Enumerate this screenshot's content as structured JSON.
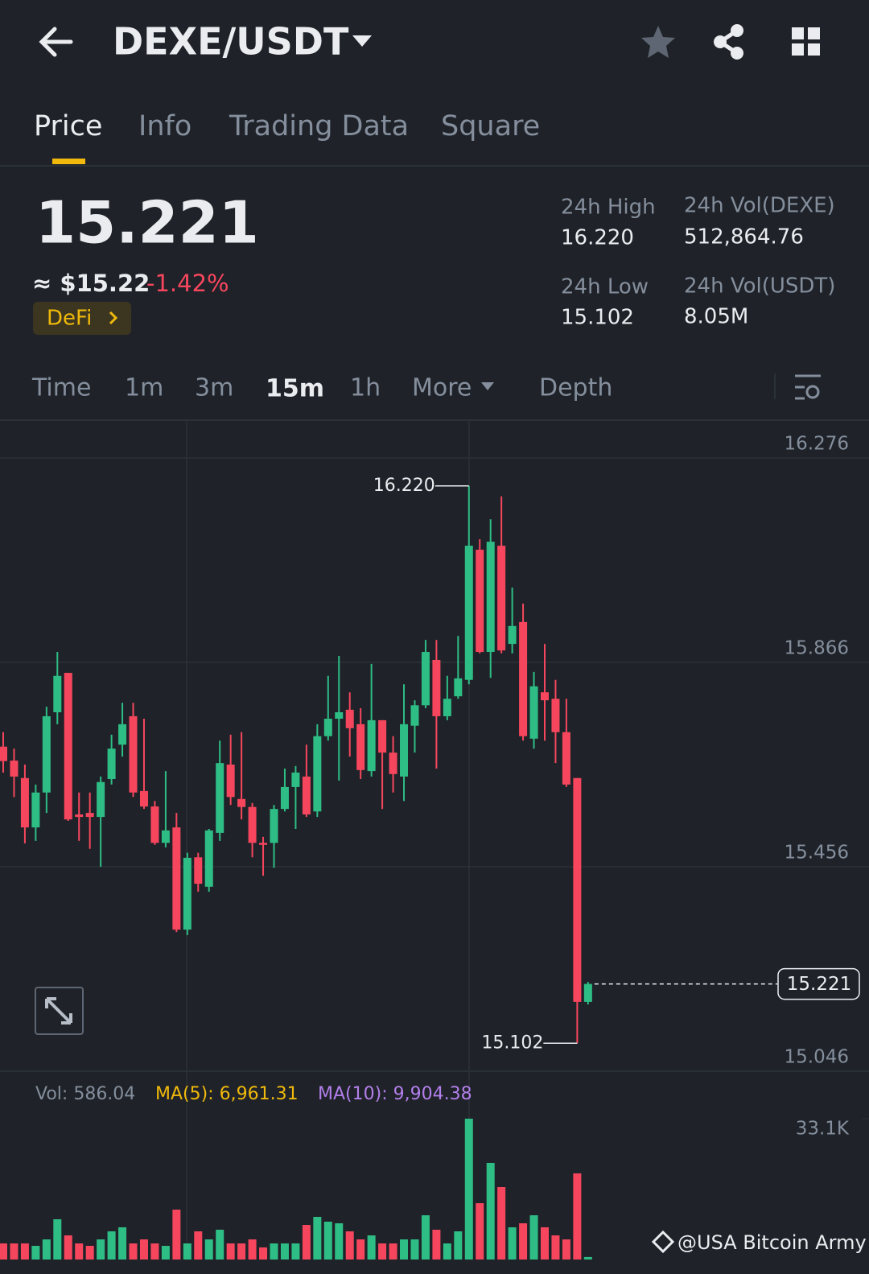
{
  "header": {
    "title": "DEXE/USDT"
  },
  "tabs": [
    "Price",
    "Info",
    "Trading Data",
    "Square"
  ],
  "ticker": {
    "price": "15.221",
    "usd": "≈ $15.22",
    "change": "-1.42%",
    "tag": "DeFi",
    "stats": [
      {
        "label": "24h High",
        "value": "16.220"
      },
      {
        "label": "24h Vol(DEXE)",
        "value": "512,864.76"
      },
      {
        "label": "24h Low",
        "value": "15.102"
      },
      {
        "label": "24h Vol(USDT)",
        "value": "8.05M"
      }
    ]
  },
  "intervals": [
    "Time",
    "1m",
    "3m",
    "15m",
    "1h",
    "More",
    "Depth"
  ],
  "chart_data": [
    {
      "type": "candlestick",
      "up_color": "#2ebd85",
      "down_color": "#f6465d",
      "ylim": [
        15.046,
        16.352
      ],
      "yticks": [
        16.276,
        15.866,
        15.456,
        15.046
      ],
      "grid": true,
      "ohlc": [
        [
          15.697,
          15.726,
          15.645,
          15.668
        ],
        [
          15.669,
          15.693,
          15.596,
          15.637
        ],
        [
          15.634,
          15.661,
          15.503,
          15.535
        ],
        [
          15.535,
          15.621,
          15.508,
          15.605
        ],
        [
          15.605,
          15.777,
          15.564,
          15.758
        ],
        [
          15.766,
          15.887,
          15.742,
          15.839
        ],
        [
          15.845,
          15.845,
          15.548,
          15.551
        ],
        [
          15.561,
          15.605,
          15.508,
          15.556
        ],
        [
          15.564,
          15.605,
          15.492,
          15.556
        ],
        [
          15.556,
          15.637,
          15.456,
          15.626
        ],
        [
          15.632,
          15.721,
          15.621,
          15.693
        ],
        [
          15.701,
          15.785,
          15.677,
          15.742
        ],
        [
          15.758,
          15.785,
          15.596,
          15.605
        ],
        [
          15.608,
          15.753,
          15.572,
          15.577
        ],
        [
          15.577,
          15.588,
          15.5,
          15.504
        ],
        [
          15.504,
          15.648,
          15.495,
          15.529
        ],
        [
          15.535,
          15.564,
          15.325,
          15.33
        ],
        [
          15.33,
          15.484,
          15.319,
          15.474
        ],
        [
          15.475,
          15.484,
          15.406,
          15.422
        ],
        [
          15.416,
          15.532,
          15.406,
          15.529
        ],
        [
          15.524,
          15.709,
          15.508,
          15.664
        ],
        [
          15.661,
          15.721,
          15.58,
          15.596
        ],
        [
          15.592,
          15.726,
          15.551,
          15.576
        ],
        [
          15.576,
          15.584,
          15.475,
          15.504
        ],
        [
          15.504,
          15.516,
          15.438,
          15.5
        ],
        [
          15.504,
          15.58,
          15.454,
          15.572
        ],
        [
          15.572,
          15.653,
          15.567,
          15.616
        ],
        [
          15.616,
          15.658,
          15.532,
          15.645
        ],
        [
          15.637,
          15.701,
          15.556,
          15.561
        ],
        [
          15.567,
          15.742,
          15.556,
          15.718
        ],
        [
          15.718,
          15.839,
          15.709,
          15.753
        ],
        [
          15.753,
          15.879,
          15.629,
          15.766
        ],
        [
          15.771,
          15.806,
          15.677,
          15.734
        ],
        [
          15.742,
          15.774,
          15.632,
          15.65
        ],
        [
          15.648,
          15.863,
          15.637,
          15.75
        ],
        [
          15.75,
          15.75,
          15.572,
          15.685
        ],
        [
          15.685,
          15.718,
          15.605,
          15.642
        ],
        [
          15.637,
          15.822,
          15.588,
          15.742
        ],
        [
          15.739,
          15.79,
          15.685,
          15.78
        ],
        [
          15.78,
          15.911,
          15.774,
          15.887
        ],
        [
          15.871,
          15.911,
          15.653,
          15.758
        ],
        [
          15.758,
          15.839,
          15.75,
          15.793
        ],
        [
          15.798,
          15.919,
          15.793,
          15.834
        ],
        [
          15.831,
          16.22,
          15.822,
          16.1
        ],
        [
          16.092,
          16.113,
          15.884,
          15.887
        ],
        [
          15.887,
          16.153,
          15.835,
          16.108
        ],
        [
          16.1,
          16.199,
          15.884,
          15.89
        ],
        [
          15.903,
          16.016,
          15.884,
          15.939
        ],
        [
          15.947,
          15.984,
          15.709,
          15.718
        ],
        [
          15.713,
          15.847,
          15.693,
          15.818
        ],
        [
          15.806,
          15.903,
          15.709,
          15.79
        ],
        [
          15.793,
          15.831,
          15.664,
          15.726
        ],
        [
          15.726,
          15.793,
          15.616,
          15.621
        ],
        [
          15.634,
          15.634,
          15.102,
          15.185
        ],
        [
          15.185,
          15.225,
          15.18,
          15.221
        ]
      ],
      "annotations": [
        {
          "value": 16.22,
          "label": "16.220",
          "kind": "high"
        },
        {
          "value": 15.102,
          "label": "15.102",
          "kind": "low"
        }
      ],
      "last_price": {
        "value": 15.221,
        "label": "15.221"
      }
    },
    {
      "type": "bar",
      "legend": [
        {
          "label": "Vol: 586.04",
          "color": "#848e9c"
        },
        {
          "label": "MA(5): 6,961.31",
          "color": "#f0b90b"
        },
        {
          "label": "MA(10): 9,904.38",
          "color": "#b37feb"
        }
      ],
      "ylim": [
        0,
        33100
      ],
      "yticks": [
        {
          "value": 33100,
          "label": "33.1K"
        }
      ],
      "values": [
        3780,
        3780,
        3780,
        3210,
        4730,
        9460,
        5670,
        3780,
        3210,
        4730,
        6620,
        7570,
        3780,
        4730,
        3780,
        3210,
        11720,
        3780,
        6620,
        4730,
        7000,
        3780,
        3780,
        4730,
        2840,
        3780,
        3780,
        3780,
        8130,
        10020,
        8890,
        8510,
        6620,
        4730,
        5670,
        3780,
        3780,
        4730,
        4730,
        10400,
        7000,
        3780,
        6620,
        33100,
        13240,
        22700,
        17020,
        7570,
        8510,
        10400,
        7570,
        5670,
        4730,
        20240,
        586.04
      ]
    }
  ],
  "watermark": "@USA Bitcoin Army"
}
